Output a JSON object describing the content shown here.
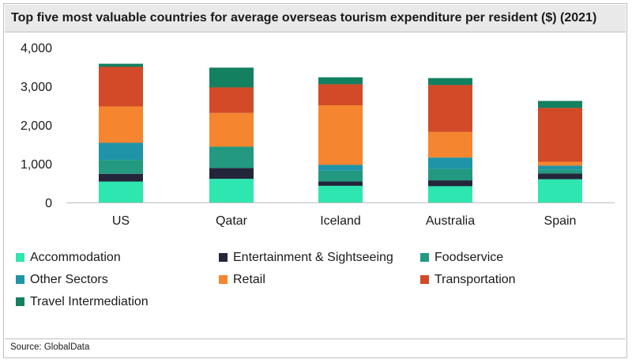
{
  "header": {
    "title": "Top five most valuable countries for average overseas tourism expenditure per resident ($) (2021)"
  },
  "footer": {
    "source": "Source: GlobalData"
  },
  "colors": {
    "Accommodation": "#2ee6b0",
    "Entertainment & Sightseeing": "#23263b",
    "Foodservice": "#229980",
    "Other Sectors": "#1f94a8",
    "Retail": "#f5852f",
    "Transportation": "#d24a27",
    "Travel Intermediation": "#138060"
  },
  "chart_data": {
    "type": "bar",
    "stacked": true,
    "title": "Top five most valuable countries for average overseas tourism expenditure per resident ($) (2021)",
    "categories": [
      "US",
      "Qatar",
      "Iceland",
      "Australia",
      "Spain"
    ],
    "ylim": [
      0,
      4000
    ],
    "yticks": [
      0,
      1000,
      2000,
      3000,
      4000
    ],
    "ytick_labels": [
      "0",
      "1,000",
      "2,000",
      "3,000",
      "4,000"
    ],
    "grid": false,
    "legend_position": "bottom",
    "series": [
      {
        "name": "Accommodation",
        "values": [
          540,
          610,
          430,
          420,
          600
        ]
      },
      {
        "name": "Entertainment & Sightseeing",
        "values": [
          200,
          280,
          110,
          150,
          150
        ]
      },
      {
        "name": "Foodservice",
        "values": [
          360,
          550,
          280,
          300,
          100
        ]
      },
      {
        "name": "Other Sectors",
        "values": [
          440,
          0,
          150,
          290,
          100
        ]
      },
      {
        "name": "Retail",
        "values": [
          940,
          870,
          1540,
          660,
          100
        ]
      },
      {
        "name": "Transportation",
        "values": [
          1020,
          660,
          540,
          1210,
          1390
        ]
      },
      {
        "name": "Travel Intermediation",
        "values": [
          80,
          510,
          180,
          180,
          180
        ]
      }
    ]
  }
}
